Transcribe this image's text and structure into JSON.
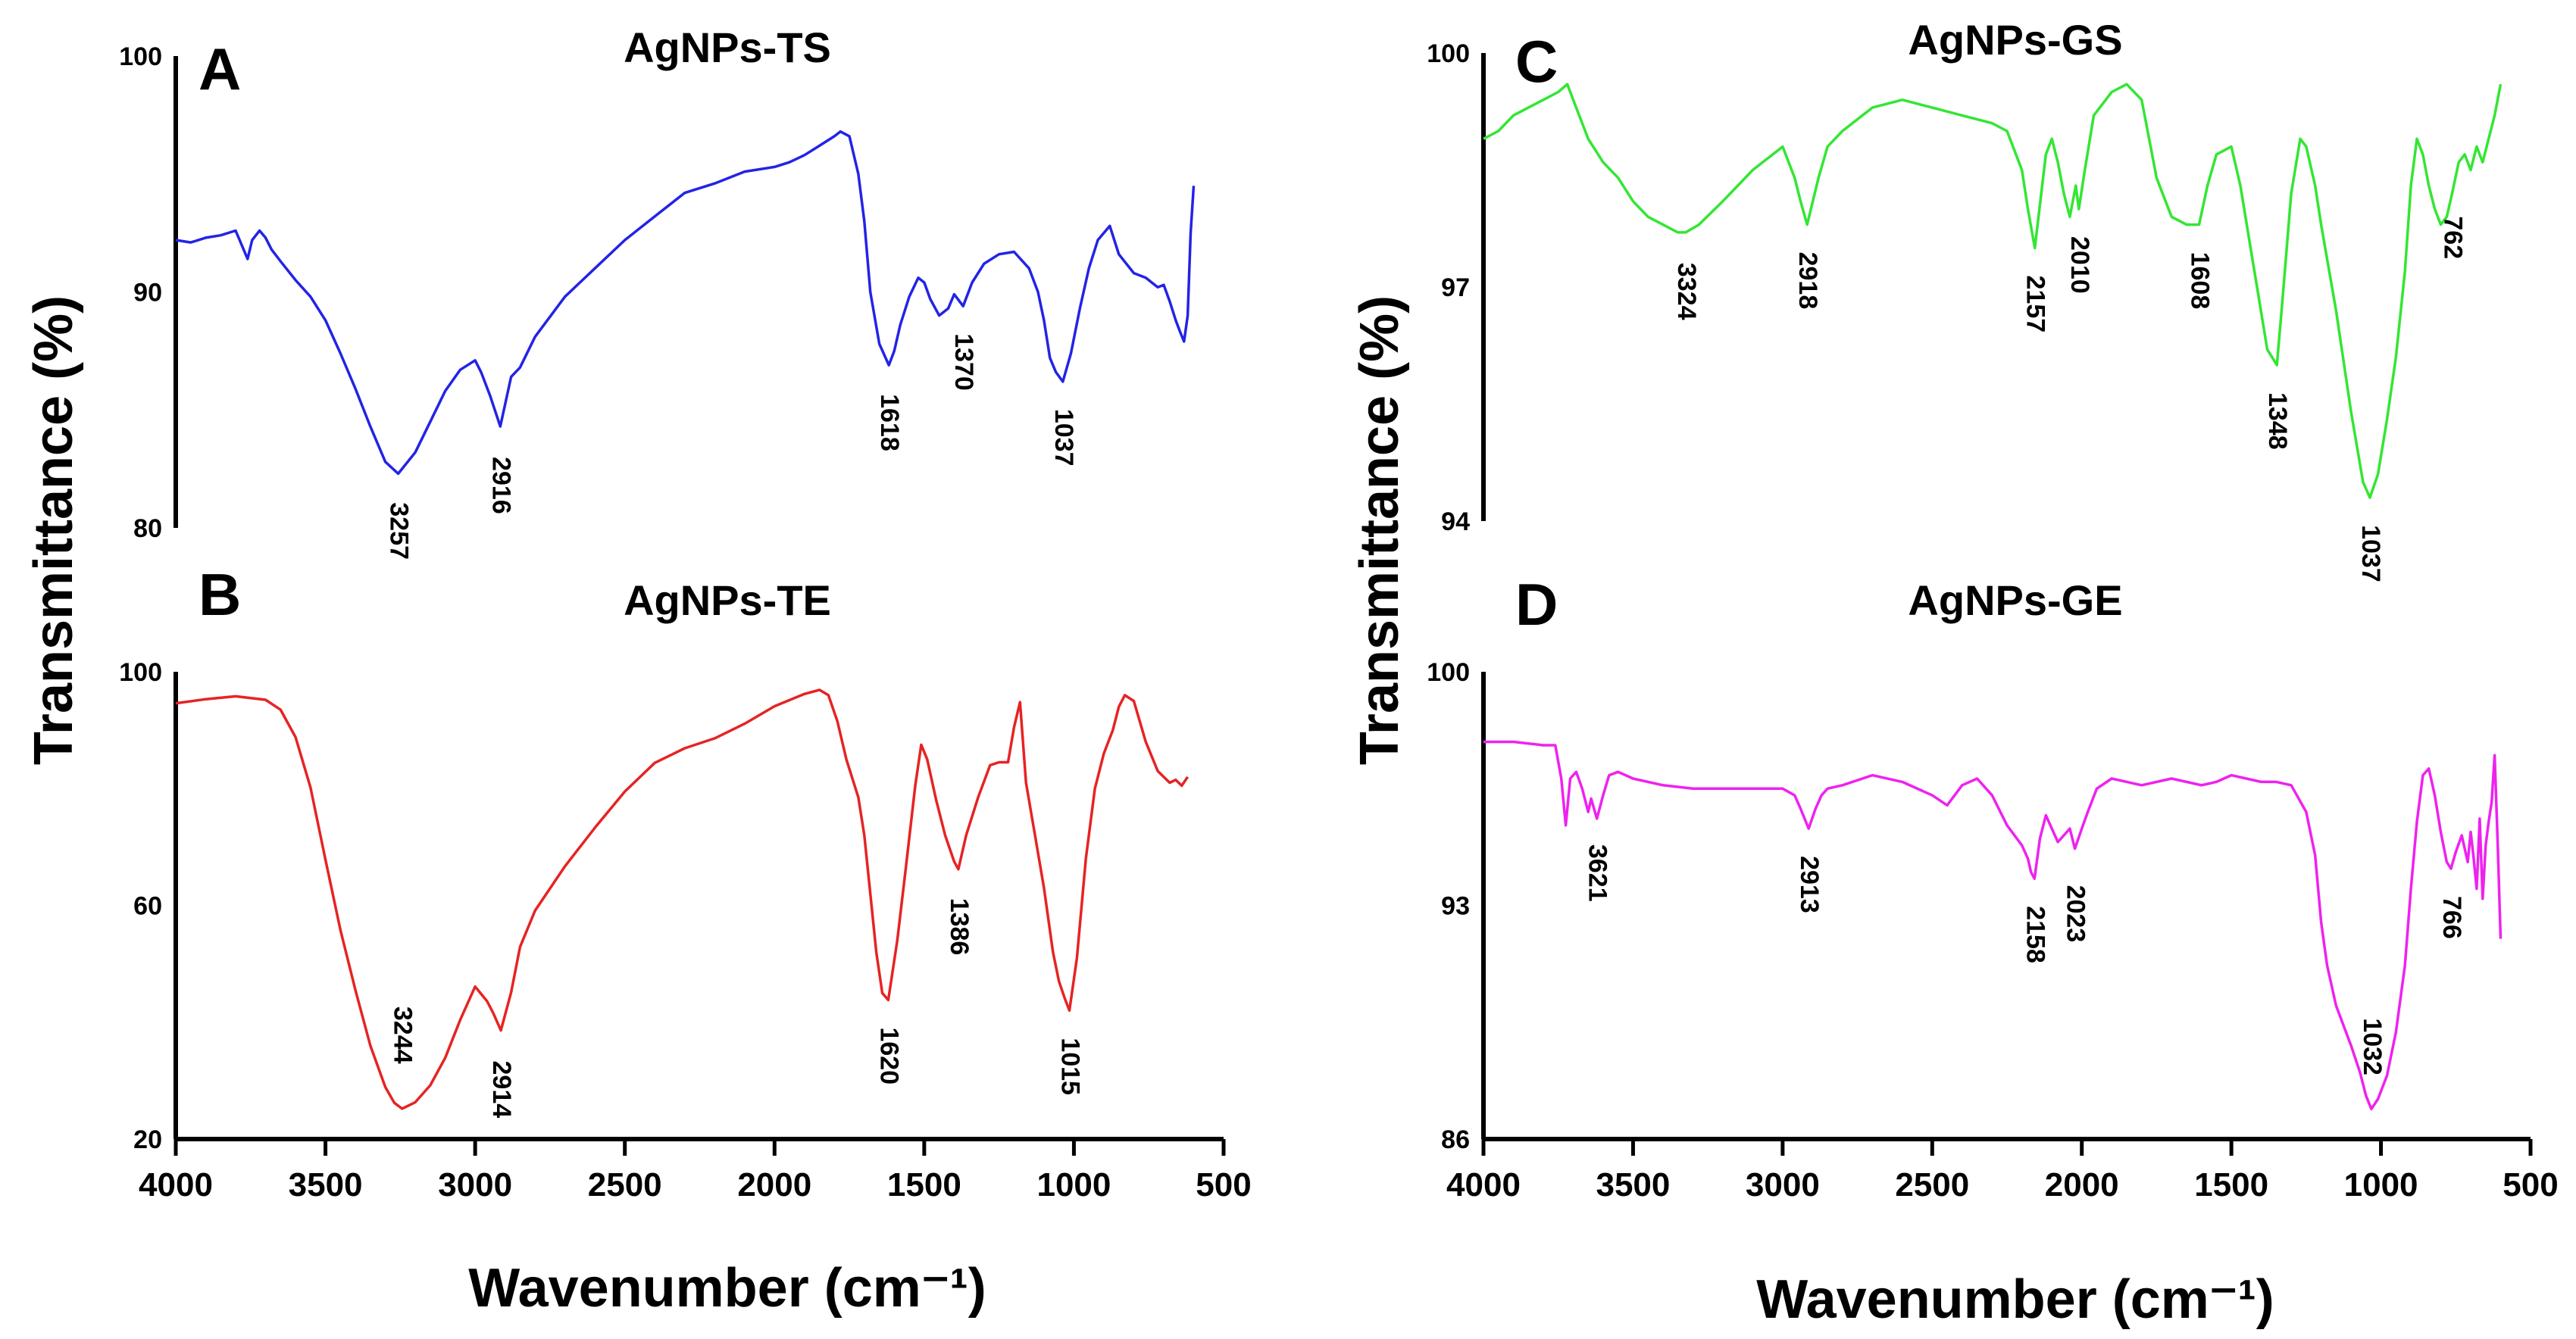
{
  "figure": {
    "shared_xlabel_left": "Wavenumber (cm⁻¹)",
    "shared_xlabel_right": "Wavenumber (cm⁻¹)",
    "shared_ylabel_left": "Transmittance (%)",
    "shared_ylabel_right": "Transmittance (%)"
  },
  "chart_data": [
    {
      "type": "line",
      "panel": "A",
      "title": "AgNPs-TS",
      "color": "#2323e6",
      "xlim": [
        4000,
        500
      ],
      "ylim": [
        80,
        100
      ],
      "yticks": [
        80,
        90,
        100
      ],
      "x_axis_shown": false,
      "x": [
        4000,
        3950,
        3900,
        3850,
        3800,
        3760,
        3745,
        3720,
        3700,
        3680,
        3650,
        3600,
        3550,
        3500,
        3450,
        3400,
        3350,
        3300,
        3257,
        3200,
        3150,
        3100,
        3050,
        3000,
        2980,
        2950,
        2916,
        2880,
        2850,
        2800,
        2700,
        2600,
        2500,
        2400,
        2300,
        2200,
        2100,
        2000,
        1950,
        1900,
        1850,
        1800,
        1780,
        1750,
        1720,
        1700,
        1680,
        1650,
        1618,
        1600,
        1580,
        1550,
        1520,
        1500,
        1480,
        1450,
        1420,
        1400,
        1370,
        1340,
        1300,
        1250,
        1200,
        1150,
        1120,
        1100,
        1080,
        1060,
        1037,
        1010,
        980,
        950,
        920,
        880,
        850,
        800,
        760,
        720,
        700,
        680,
        660,
        645,
        632,
        620,
        610,
        600
      ],
      "y": [
        92.2,
        92.1,
        92.3,
        92.4,
        92.6,
        91.4,
        92.2,
        92.6,
        92.3,
        91.8,
        91.3,
        90.5,
        89.8,
        88.8,
        87.4,
        85.9,
        84.3,
        82.8,
        82.3,
        83.2,
        84.5,
        85.8,
        86.7,
        87.1,
        86.6,
        85.6,
        84.3,
        86.4,
        86.8,
        88.1,
        89.8,
        91.0,
        92.2,
        93.2,
        94.2,
        94.6,
        95.1,
        95.3,
        95.5,
        95.8,
        96.2,
        96.6,
        96.8,
        96.6,
        95.0,
        93.0,
        90.0,
        87.8,
        86.9,
        87.5,
        88.6,
        89.8,
        90.6,
        90.4,
        89.7,
        89.0,
        89.3,
        89.9,
        89.4,
        90.4,
        91.2,
        91.6,
        91.7,
        91.0,
        90.0,
        88.8,
        87.2,
        86.6,
        86.2,
        87.4,
        89.3,
        91.0,
        92.2,
        92.8,
        91.6,
        90.8,
        90.6,
        90.2,
        90.3,
        89.6,
        88.8,
        88.3,
        87.9,
        89.0,
        92.5,
        94.5
      ],
      "peaks": [
        {
          "x": 3257,
          "label": "3257"
        },
        {
          "x": 2916,
          "label": "2916"
        },
        {
          "x": 1618,
          "label": "1618"
        },
        {
          "x": 1370,
          "label": "1370"
        },
        {
          "x": 1037,
          "label": "1037"
        }
      ]
    },
    {
      "type": "line",
      "panel": "B",
      "title": "AgNPs-TE",
      "color": "#e62323",
      "xlim": [
        4000,
        500
      ],
      "ylim": [
        20,
        100
      ],
      "yticks": [
        20,
        60,
        100
      ],
      "xticks": [
        4000,
        3500,
        3000,
        2500,
        2000,
        1500,
        1000,
        500
      ],
      "x_axis_shown": true,
      "x": [
        4000,
        3900,
        3800,
        3700,
        3650,
        3600,
        3550,
        3500,
        3450,
        3400,
        3350,
        3300,
        3270,
        3244,
        3200,
        3150,
        3100,
        3050,
        3000,
        2960,
        2940,
        2914,
        2880,
        2850,
        2800,
        2700,
        2600,
        2500,
        2400,
        2300,
        2200,
        2100,
        2000,
        1900,
        1850,
        1820,
        1790,
        1760,
        1720,
        1700,
        1680,
        1660,
        1640,
        1620,
        1590,
        1560,
        1530,
        1510,
        1490,
        1460,
        1430,
        1400,
        1386,
        1360,
        1320,
        1280,
        1250,
        1220,
        1200,
        1180,
        1160,
        1130,
        1100,
        1070,
        1050,
        1030,
        1015,
        990,
        960,
        930,
        900,
        870,
        850,
        830,
        800,
        760,
        720,
        680,
        660,
        640,
        620
      ],
      "y": [
        94.6,
        95.3,
        95.8,
        95.2,
        93.5,
        88.8,
        80.2,
        67.8,
        55.8,
        45.5,
        36.0,
        28.9,
        26.2,
        25.2,
        26.3,
        29.2,
        33.9,
        40.4,
        46.1,
        43.6,
        41.6,
        38.6,
        45.1,
        52.9,
        59.1,
        66.7,
        73.3,
        79.5,
        84.4,
        86.9,
        88.6,
        91.1,
        94.1,
        96.2,
        96.9,
        96.0,
        91.5,
        85.0,
        78.5,
        72.0,
        62.0,
        52.0,
        45.0,
        43.8,
        54.0,
        67.0,
        80.5,
        87.5,
        85.0,
        78.0,
        72.0,
        67.5,
        66.2,
        72.0,
        78.5,
        84.0,
        84.5,
        84.5,
        90.5,
        94.8,
        81.0,
        72.0,
        63.0,
        52.0,
        47.0,
        44.0,
        42.0,
        51.0,
        68.0,
        80.0,
        86.0,
        90.0,
        94.0,
        96.0,
        95.0,
        88.0,
        83.0,
        81.0,
        81.5,
        80.5,
        82.0
      ],
      "peaks": [
        {
          "x": 3244,
          "label": "3244"
        },
        {
          "x": 2914,
          "label": "2914"
        },
        {
          "x": 1620,
          "label": "1620"
        },
        {
          "x": 1386,
          "label": "1386"
        },
        {
          "x": 1015,
          "label": "1015"
        }
      ]
    },
    {
      "type": "line",
      "panel": "C",
      "title": "AgNPs-GS",
      "color": "#33e633",
      "xlim": [
        4000,
        500
      ],
      "ylim": [
        94,
        100
      ],
      "yticks": [
        94,
        97,
        100
      ],
      "x_axis_shown": false,
      "x": [
        4000,
        3950,
        3900,
        3850,
        3800,
        3750,
        3720,
        3690,
        3650,
        3600,
        3550,
        3500,
        3450,
        3400,
        3350,
        3324,
        3280,
        3200,
        3100,
        3000,
        2960,
        2940,
        2918,
        2880,
        2850,
        2800,
        2700,
        2600,
        2500,
        2400,
        2300,
        2250,
        2200,
        2180,
        2157,
        2120,
        2100,
        2080,
        2060,
        2040,
        2020,
        2010,
        1990,
        1960,
        1900,
        1850,
        1800,
        1780,
        1750,
        1700,
        1650,
        1608,
        1580,
        1550,
        1500,
        1470,
        1440,
        1410,
        1380,
        1348,
        1330,
        1300,
        1270,
        1250,
        1220,
        1200,
        1150,
        1100,
        1060,
        1037,
        1010,
        980,
        950,
        920,
        900,
        880,
        860,
        840,
        820,
        800,
        780,
        762,
        740,
        720,
        700,
        680,
        660,
        640,
        620,
        600
      ],
      "y": [
        98.9,
        99.0,
        99.2,
        99.3,
        99.4,
        99.5,
        99.6,
        99.3,
        98.9,
        98.6,
        98.4,
        98.1,
        97.9,
        97.8,
        97.7,
        97.7,
        97.8,
        98.1,
        98.5,
        98.8,
        98.4,
        98.1,
        97.8,
        98.4,
        98.8,
        99.0,
        99.3,
        99.4,
        99.3,
        99.2,
        99.1,
        99.0,
        98.5,
        98.0,
        97.5,
        98.7,
        98.9,
        98.6,
        98.2,
        97.9,
        98.3,
        98.0,
        98.5,
        99.2,
        99.5,
        99.6,
        99.4,
        99.0,
        98.4,
        97.9,
        97.8,
        97.8,
        98.3,
        98.7,
        98.8,
        98.3,
        97.6,
        96.9,
        96.2,
        96.0,
        96.8,
        98.2,
        98.9,
        98.8,
        98.3,
        97.8,
        96.7,
        95.4,
        94.5,
        94.3,
        94.6,
        95.3,
        96.1,
        97.2,
        98.3,
        98.9,
        98.7,
        98.3,
        98.0,
        97.8,
        97.9,
        98.2,
        98.6,
        98.7,
        98.5,
        98.8,
        98.6,
        98.9,
        99.2,
        99.6
      ],
      "peaks": [
        {
          "x": 3324,
          "label": "3324"
        },
        {
          "x": 2918,
          "label": "2918"
        },
        {
          "x": 2157,
          "label": "2157"
        },
        {
          "x": 2010,
          "label": "2010"
        },
        {
          "x": 1608,
          "label": "1608"
        },
        {
          "x": 1348,
          "label": "1348"
        },
        {
          "x": 1037,
          "label": "1037"
        },
        {
          "x": 762,
          "label": "762"
        }
      ]
    },
    {
      "type": "line",
      "panel": "D",
      "title": "AgNPs-GE",
      "color": "#ee22ee",
      "xlim": [
        4000,
        500
      ],
      "ylim": [
        86,
        100
      ],
      "yticks": [
        86,
        93,
        100
      ],
      "xticks": [
        4000,
        3500,
        3000,
        2500,
        2000,
        1500,
        1000,
        500
      ],
      "x_axis_shown": true,
      "x": [
        4000,
        3900,
        3800,
        3760,
        3740,
        3725,
        3710,
        3690,
        3670,
        3650,
        3640,
        3621,
        3600,
        3580,
        3550,
        3500,
        3400,
        3300,
        3200,
        3100,
        3000,
        2960,
        2940,
        2913,
        2890,
        2870,
        2850,
        2800,
        2700,
        2600,
        2500,
        2450,
        2400,
        2350,
        2300,
        2250,
        2200,
        2180,
        2170,
        2158,
        2140,
        2120,
        2100,
        2080,
        2060,
        2040,
        2023,
        2000,
        1980,
        1950,
        1900,
        1800,
        1700,
        1600,
        1550,
        1500,
        1450,
        1400,
        1350,
        1300,
        1250,
        1220,
        1200,
        1180,
        1150,
        1100,
        1070,
        1050,
        1032,
        1010,
        980,
        950,
        920,
        900,
        880,
        860,
        840,
        820,
        800,
        780,
        766,
        750,
        730,
        710,
        700,
        690,
        680,
        670,
        660,
        650,
        640,
        630,
        620,
        610,
        600
      ],
      "y": [
        97.9,
        97.9,
        97.8,
        97.8,
        96.8,
        95.4,
        96.8,
        97.0,
        96.5,
        95.8,
        96.2,
        95.6,
        96.3,
        96.9,
        97.0,
        96.8,
        96.6,
        96.5,
        96.5,
        96.5,
        96.5,
        96.3,
        95.9,
        95.3,
        95.9,
        96.3,
        96.5,
        96.6,
        96.9,
        96.7,
        96.3,
        96.0,
        96.6,
        96.8,
        96.3,
        95.4,
        94.8,
        94.4,
        94.0,
        93.8,
        95.0,
        95.7,
        95.3,
        94.9,
        95.1,
        95.3,
        94.7,
        95.3,
        95.8,
        96.5,
        96.8,
        96.6,
        96.8,
        96.6,
        96.7,
        96.9,
        96.8,
        96.7,
        96.7,
        96.6,
        95.8,
        94.5,
        92.5,
        91.2,
        90.0,
        88.8,
        88.0,
        87.3,
        86.9,
        87.2,
        87.9,
        89.2,
        91.2,
        93.5,
        95.5,
        96.9,
        97.1,
        96.3,
        95.2,
        94.3,
        94.1,
        94.6,
        95.1,
        94.3,
        95.2,
        94.4,
        93.5,
        95.6,
        93.2,
        94.8,
        95.5,
        96.1,
        97.5,
        94.9,
        92.0
      ],
      "peaks": [
        {
          "x": 3621,
          "label": "3621"
        },
        {
          "x": 2913,
          "label": "2913"
        },
        {
          "x": 2158,
          "label": "2158"
        },
        {
          "x": 2023,
          "label": "2023"
        },
        {
          "x": 1032,
          "label": "1032"
        },
        {
          "x": 766,
          "label": "766"
        }
      ]
    }
  ]
}
